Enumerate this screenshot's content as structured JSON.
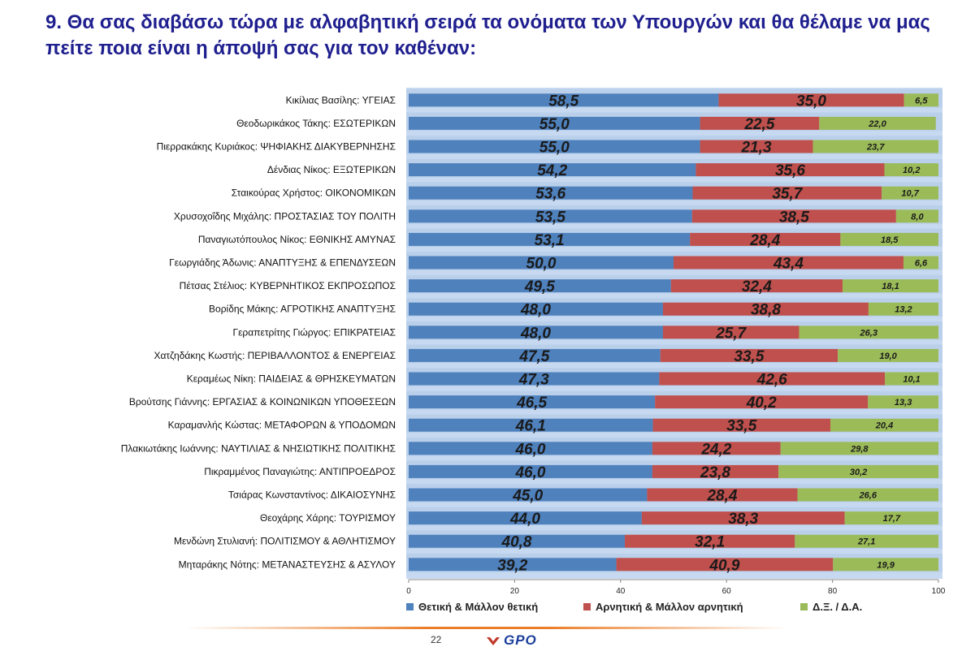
{
  "title": "9. Θα σας διαβάσω τώρα με αλφαβητική σειρά τα ονόματα των Υπουργών και θα θέλαμε να μας πείτε ποια είναι η άποψή σας για τον καθέναν:",
  "page_number": "22",
  "logo_text": "GPO",
  "colors": {
    "positive": "#4f81bd",
    "negative": "#c0504d",
    "dk": "#9bbb59",
    "bg": "#c6d9f1",
    "title": "#1f1f8f"
  },
  "chart_data": {
    "type": "bar",
    "orientation": "horizontal",
    "stacked": true,
    "categories": [
      "Κικίλιας Βασίλης: ΥΓΕΙΑΣ",
      "Θεοδωρικάκος Τάκης: ΕΣΩΤΕΡΙΚΩΝ",
      "Πιερρακάκης Κυριάκος: ΨΗΦΙΑΚΗΣ ΔΙΑΚΥΒΕΡΝΗΣΗΣ",
      "Δένδιας Νίκος: ΕΞΩΤΕΡΙΚΩΝ",
      "Σταικούρας Χρήστος: ΟΙΚΟΝΟΜΙΚΩΝ",
      "Χρυσοχοΐδης Μιχάλης: ΠΡΟΣΤΑΣΙΑΣ ΤΟΥ ΠΟΛΙΤΗ",
      "Παναγιωτόπουλος Νίκος: ΕΘΝΙΚΗΣ ΑΜΥΝΑΣ",
      "Γεωργιάδης Άδωνις: ΑΝΑΠΤΥΞΗΣ & ΕΠΕΝΔΥΣΕΩΝ",
      "Πέτσας Στέλιος: ΚΥΒΕΡΝΗΤΙΚΟΣ ΕΚΠΡΟΣΩΠΟΣ",
      "Βορίδης Μάκης:  ΑΓΡΟΤΙΚΗΣ ΑΝΑΠΤΥΞΗΣ",
      "Γεραπετρίτης Γιώργος: ΕΠΙΚΡΑΤΕΙΑΣ",
      "Χατζηδάκης Κωστής: ΠΕΡΙΒΑΛΛΟΝΤΟΣ & ΕΝΕΡΓΕΙΑΣ",
      "Κεραμέως Νίκη: ΠΑΙΔΕΙΑΣ & ΘΡΗΣΚΕΥΜΑΤΩΝ",
      "Βρούτσης Γιάννης: ΕΡΓΑΣΙΑΣ & ΚΟΙΝΩΝΙΚΩΝ ΥΠΟΘΕΣΕΩΝ",
      "Καραμανλής Κώστας: ΜΕΤΑΦΟΡΩΝ & ΥΠΟΔΟΜΩΝ",
      "Πλακιωτάκης Ιωάννης: ΝΑΥΤΙΛΙΑΣ & ΝΗΣΙΩΤΙΚΗΣ ΠΟΛΙΤΙΚΗΣ",
      "Πικραμμένος Παναγιώτης: ΑΝΤΙΠΡΟΕΔΡΟΣ",
      "Τσιάρας Κωνσταντίνος: ΔΙΚΑΙΟΣΥΝΗΣ",
      "Θεοχάρης Χάρης: ΤΟΥΡΙΣΜΟΥ",
      "Μενδώνη Στυλιανή: ΠΟΛΙΤΙΣΜΟΥ & ΑΘΛΗΤΙΣΜΟΥ",
      "Μηταράκης Νότης: ΜΕΤΑΝΑΣΤΕΥΣΗΣ & ΑΣΥΛΟΥ"
    ],
    "series": [
      {
        "name": "Θετική & Μάλλον θετική",
        "color": "#4f81bd",
        "values": [
          58.5,
          55.0,
          55.0,
          54.2,
          53.6,
          53.5,
          53.1,
          50.0,
          49.5,
          48.0,
          48.0,
          47.5,
          47.3,
          46.5,
          46.1,
          46.0,
          46.0,
          45.0,
          44.0,
          40.8,
          39.2
        ],
        "labels": [
          "58,5",
          "55,0",
          "55,0",
          "54,2",
          "53,6",
          "53,5",
          "53,1",
          "50,0",
          "49,5",
          "48,0",
          "48,0",
          "47,5",
          "47,3",
          "46,5",
          "46,1",
          "46,0",
          "46,0",
          "45,0",
          "44,0",
          "40,8",
          "39,2"
        ]
      },
      {
        "name": "Αρνητική & Μάλλον αρνητική",
        "color": "#c0504d",
        "values": [
          35.0,
          22.5,
          21.3,
          35.6,
          35.7,
          38.5,
          28.4,
          43.4,
          32.4,
          38.8,
          25.7,
          33.5,
          42.6,
          40.2,
          33.5,
          24.2,
          23.8,
          28.4,
          38.3,
          32.1,
          40.9
        ],
        "labels": [
          "35,0",
          "22,5",
          "21,3",
          "35,6",
          "35,7",
          "38,5",
          "28,4",
          "43,4",
          "32,4",
          "38,8",
          "25,7",
          "33,5",
          "42,6",
          "40,2",
          "33,5",
          "24,2",
          "23,8",
          "28,4",
          "38,3",
          "32,1",
          "40,9"
        ]
      },
      {
        "name": "Δ.Ξ. / Δ.Α.",
        "color": "#9bbb59",
        "values": [
          6.5,
          22.0,
          23.7,
          10.2,
          10.7,
          8.0,
          18.5,
          6.6,
          18.1,
          13.2,
          26.3,
          19.0,
          10.1,
          13.3,
          20.4,
          29.8,
          30.2,
          26.6,
          17.7,
          27.1,
          19.9
        ],
        "labels": [
          "6,5",
          "22,0",
          "23,7",
          "10,2",
          "10,7",
          "8,0",
          "18,5",
          "6,6",
          "18,1",
          "13,2",
          "26,3",
          "19,0",
          "10,1",
          "13,3",
          "20,4",
          "29,8",
          "30,2",
          "26,6",
          "17,7",
          "27,1",
          "19,9"
        ]
      }
    ],
    "xlim": [
      0,
      100
    ],
    "xticks": [
      "0",
      "20",
      "40",
      "60",
      "80",
      "100"
    ],
    "legend_position": "bottom"
  }
}
